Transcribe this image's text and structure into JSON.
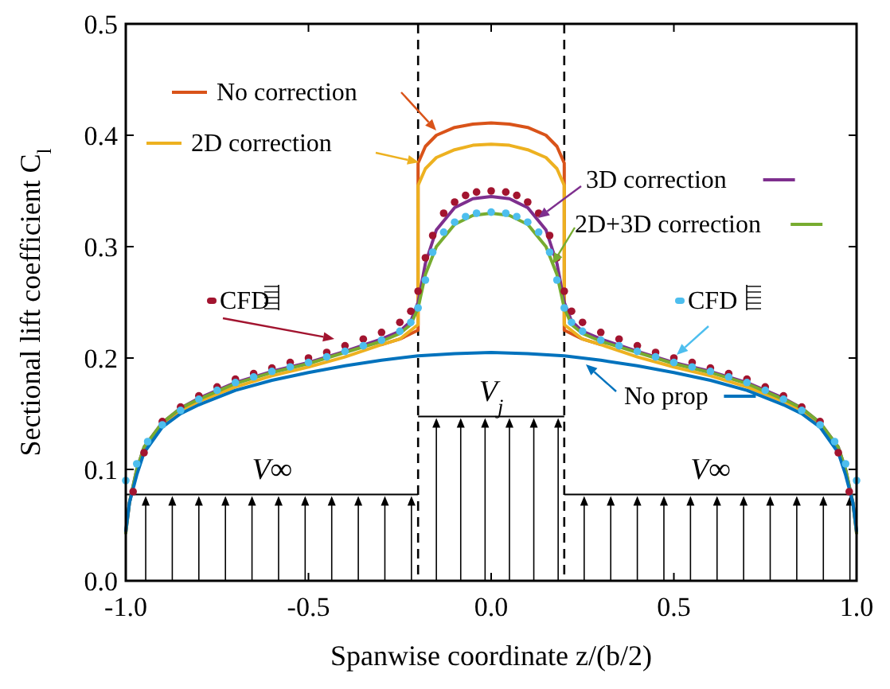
{
  "chart_data": {
    "type": "line",
    "xlabel": "Spanwise coordinate z/(b/2)",
    "ylabel": "Sectional lift coefficient C$_{l}$",
    "xlim": [
      -1,
      1
    ],
    "ylim": [
      0,
      0.5
    ],
    "xticks": [
      {
        "value": -1,
        "label": "-1.0"
      },
      {
        "value": -0.5,
        "label": "-0.5"
      },
      {
        "value": 0,
        "label": "0.0"
      },
      {
        "value": 0.5,
        "label": "0.5"
      },
      {
        "value": 1,
        "label": "1.0"
      }
    ],
    "yticks": [
      {
        "value": 0,
        "label": "0.0"
      },
      {
        "value": 0.1,
        "label": "0.1"
      },
      {
        "value": 0.2,
        "label": "0.2"
      },
      {
        "value": 0.3,
        "label": "0.3"
      },
      {
        "value": 0.4,
        "label": "0.4"
      },
      {
        "value": 0.5,
        "label": "0.5"
      }
    ],
    "grid": false,
    "legend": "top",
    "line_style": "solid",
    "ref_lines": [
      {
        "axis": "x",
        "value": -0.2,
        "line_style": "dashed",
        "color": "#000000"
      },
      {
        "axis": "x",
        "value": 0.2,
        "line_style": "dashed",
        "color": "#000000"
      }
    ],
    "annotations": [
      "V∞",
      "V$_{j}$",
      "V∞"
    ],
    "series": [
      {
        "name": "No correction",
        "color": "#d95319",
        "x": [
          -0.3,
          -0.25,
          -0.2,
          -0.2,
          -0.18,
          -0.15,
          -0.1,
          -0.05,
          0,
          0.05,
          0.1,
          0.15,
          0.18,
          0.2,
          0.2,
          0.25,
          0.3
        ],
        "values": [
          0.212,
          0.217,
          0.225,
          0.375,
          0.39,
          0.4,
          0.407,
          0.41,
          0.411,
          0.41,
          0.407,
          0.4,
          0.39,
          0.375,
          0.225,
          0.217,
          0.212
        ]
      },
      {
        "name": "2D correction",
        "color": "#edb120",
        "x": [
          -0.9,
          -0.85,
          -0.8,
          -0.7,
          -0.6,
          -0.5,
          -0.4,
          -0.3,
          -0.25,
          -0.2,
          -0.2,
          -0.18,
          -0.15,
          -0.1,
          -0.05,
          0,
          0.05,
          0.1,
          0.15,
          0.18,
          0.2,
          0.2,
          0.25,
          0.3,
          0.4,
          0.5,
          0.6,
          0.7,
          0.8,
          0.85,
          0.9
        ],
        "values": [
          0.14,
          0.153,
          0.161,
          0.174,
          0.184,
          0.192,
          0.201,
          0.212,
          0.217,
          0.23,
          0.355,
          0.37,
          0.38,
          0.387,
          0.391,
          0.392,
          0.391,
          0.387,
          0.38,
          0.37,
          0.355,
          0.23,
          0.217,
          0.212,
          0.201,
          0.192,
          0.184,
          0.174,
          0.161,
          0.153,
          0.14
        ]
      },
      {
        "name": "3D correction",
        "color": "#7e2f8e",
        "x": [
          -1,
          -0.99,
          -0.97,
          -0.95,
          -0.9,
          -0.85,
          -0.8,
          -0.7,
          -0.6,
          -0.5,
          -0.4,
          -0.3,
          -0.25,
          -0.22,
          -0.2,
          -0.18,
          -0.15,
          -0.1,
          -0.05,
          0,
          0.05,
          0.1,
          0.15,
          0.18,
          0.2,
          0.22,
          0.25,
          0.3,
          0.4,
          0.5,
          0.6,
          0.7,
          0.8,
          0.85,
          0.9,
          0.95,
          0.97,
          0.99,
          1
        ],
        "values": [
          0.043,
          0.07,
          0.1,
          0.12,
          0.142,
          0.155,
          0.164,
          0.178,
          0.188,
          0.196,
          0.206,
          0.217,
          0.224,
          0.233,
          0.25,
          0.285,
          0.315,
          0.335,
          0.343,
          0.345,
          0.343,
          0.335,
          0.315,
          0.285,
          0.25,
          0.233,
          0.224,
          0.217,
          0.206,
          0.196,
          0.188,
          0.178,
          0.164,
          0.155,
          0.142,
          0.12,
          0.1,
          0.07,
          0.043
        ]
      },
      {
        "name": "2D+3D correction",
        "color": "#77ac30",
        "x": [
          -1,
          -0.99,
          -0.97,
          -0.95,
          -0.9,
          -0.85,
          -0.8,
          -0.7,
          -0.6,
          -0.5,
          -0.4,
          -0.3,
          -0.25,
          -0.22,
          -0.2,
          -0.18,
          -0.15,
          -0.1,
          -0.05,
          0,
          0.05,
          0.1,
          0.15,
          0.18,
          0.2,
          0.22,
          0.25,
          0.3,
          0.4,
          0.5,
          0.6,
          0.7,
          0.8,
          0.85,
          0.9,
          0.95,
          0.97,
          0.99,
          1
        ],
        "values": [
          0.043,
          0.07,
          0.1,
          0.12,
          0.142,
          0.155,
          0.163,
          0.177,
          0.187,
          0.195,
          0.205,
          0.215,
          0.222,
          0.23,
          0.245,
          0.275,
          0.3,
          0.32,
          0.328,
          0.33,
          0.328,
          0.32,
          0.3,
          0.275,
          0.245,
          0.23,
          0.222,
          0.215,
          0.205,
          0.195,
          0.187,
          0.177,
          0.163,
          0.155,
          0.142,
          0.12,
          0.1,
          0.07,
          0.043
        ]
      },
      {
        "name": "No prop",
        "color": "#0072bd",
        "x": [
          -1,
          -0.99,
          -0.97,
          -0.95,
          -0.9,
          -0.85,
          -0.8,
          -0.7,
          -0.6,
          -0.5,
          -0.4,
          -0.3,
          -0.2,
          -0.1,
          0,
          0.1,
          0.2,
          0.3,
          0.4,
          0.5,
          0.6,
          0.7,
          0.8,
          0.85,
          0.9,
          0.95,
          0.97,
          0.99,
          1
        ],
        "values": [
          0.045,
          0.07,
          0.095,
          0.115,
          0.138,
          0.15,
          0.158,
          0.171,
          0.18,
          0.187,
          0.193,
          0.198,
          0.202,
          0.204,
          0.205,
          0.204,
          0.202,
          0.198,
          0.193,
          0.187,
          0.18,
          0.171,
          0.158,
          0.15,
          0.138,
          0.115,
          0.095,
          0.07,
          0.045
        ]
      },
      {
        "name": "CFD",
        "type": "scatter",
        "marker": "circle",
        "color": "#a2142f",
        "x": [
          -0.98,
          -0.95,
          -0.9,
          -0.85,
          -0.8,
          -0.75,
          -0.7,
          -0.65,
          -0.6,
          -0.55,
          -0.5,
          -0.45,
          -0.4,
          -0.35,
          -0.3,
          -0.25,
          -0.22,
          -0.2,
          -0.18,
          -0.16,
          -0.13,
          -0.1,
          -0.07,
          -0.04,
          0,
          0.04,
          0.07,
          0.1,
          0.13,
          0.16,
          0.18,
          0.2,
          0.22,
          0.25,
          0.3,
          0.35,
          0.4,
          0.45,
          0.5,
          0.55,
          0.6,
          0.65,
          0.7,
          0.75,
          0.8,
          0.85,
          0.9,
          0.95,
          0.98
        ],
        "values": [
          0.08,
          0.115,
          0.143,
          0.156,
          0.166,
          0.174,
          0.181,
          0.186,
          0.191,
          0.196,
          0.2,
          0.205,
          0.211,
          0.217,
          0.223,
          0.232,
          0.242,
          0.26,
          0.29,
          0.31,
          0.33,
          0.34,
          0.346,
          0.349,
          0.35,
          0.349,
          0.346,
          0.34,
          0.33,
          0.31,
          0.29,
          0.26,
          0.242,
          0.232,
          0.223,
          0.217,
          0.211,
          0.205,
          0.2,
          0.196,
          0.191,
          0.186,
          0.181,
          0.174,
          0.166,
          0.156,
          0.143,
          0.115,
          0.08
        ]
      },
      {
        "name": "CFD",
        "type": "scatter",
        "marker": "circle",
        "color": "#4dbeee",
        "x": [
          -1,
          -0.97,
          -0.94,
          -0.9,
          -0.85,
          -0.8,
          -0.75,
          -0.7,
          -0.65,
          -0.6,
          -0.55,
          -0.5,
          -0.45,
          -0.4,
          -0.35,
          -0.3,
          -0.25,
          -0.22,
          -0.2,
          -0.18,
          -0.16,
          -0.13,
          -0.1,
          -0.07,
          -0.04,
          0,
          0.04,
          0.07,
          0.1,
          0.13,
          0.16,
          0.18,
          0.2,
          0.22,
          0.25,
          0.3,
          0.35,
          0.4,
          0.45,
          0.5,
          0.55,
          0.6,
          0.65,
          0.7,
          0.75,
          0.8,
          0.85,
          0.9,
          0.94,
          0.97,
          1
        ],
        "values": [
          0.09,
          0.105,
          0.125,
          0.14,
          0.153,
          0.163,
          0.171,
          0.178,
          0.183,
          0.188,
          0.192,
          0.196,
          0.201,
          0.206,
          0.211,
          0.216,
          0.224,
          0.232,
          0.245,
          0.27,
          0.295,
          0.313,
          0.322,
          0.327,
          0.33,
          0.331,
          0.33,
          0.327,
          0.322,
          0.313,
          0.295,
          0.27,
          0.245,
          0.232,
          0.224,
          0.216,
          0.211,
          0.206,
          0.201,
          0.196,
          0.192,
          0.188,
          0.183,
          0.178,
          0.171,
          0.163,
          0.153,
          0.14,
          0.125,
          0.105,
          0.09
        ]
      }
    ]
  }
}
